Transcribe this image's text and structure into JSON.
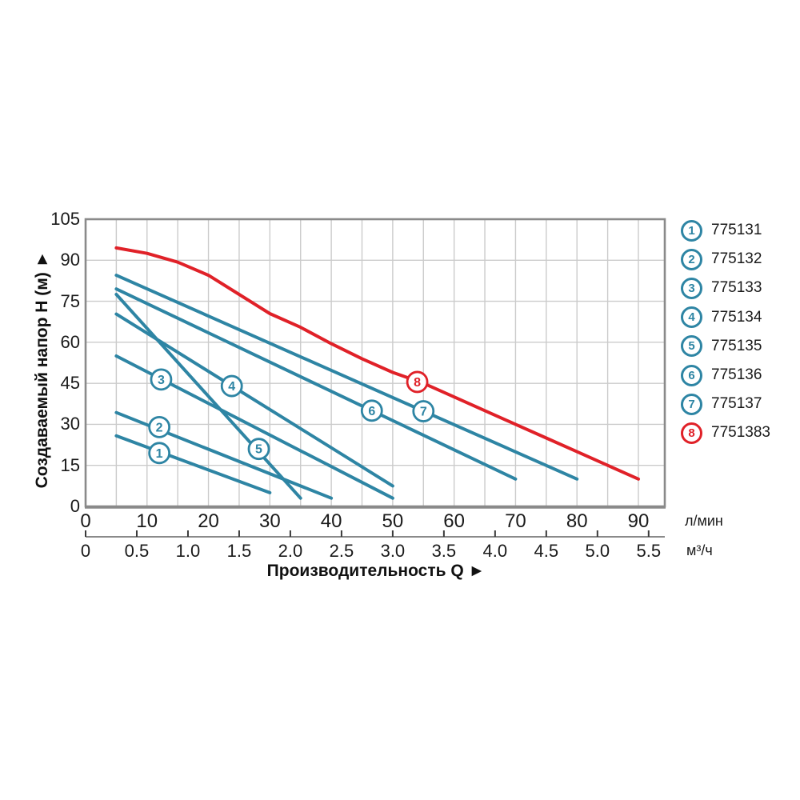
{
  "chart_data": {
    "type": "line",
    "title": "",
    "y_axis": {
      "label": "Создаваемый напор Н (м) ►",
      "ticks": [
        0,
        15,
        30,
        45,
        60,
        75,
        90,
        105
      ],
      "min": 0,
      "max": 105
    },
    "x_axis": {
      "label": "Производительность Q ►",
      "primary": {
        "unit": "л/мин",
        "ticks": [
          0,
          10,
          20,
          30,
          40,
          50,
          60,
          70,
          80,
          90
        ],
        "max": 94.3
      },
      "secondary": {
        "unit": "м³/ч",
        "ticks": [
          "0",
          "0.5",
          "1.0",
          "1.5",
          "2.0",
          "2.5",
          "3.0",
          "3.5",
          "4.0",
          "4.5",
          "5.0",
          "5.5"
        ],
        "lpm_per_unit": 16.667
      }
    },
    "grid": {
      "x_step": 5,
      "y_step": 15,
      "color": "#cbcbcb"
    },
    "series": [
      {
        "num": "1",
        "code": "775131",
        "color": "#2e85a4",
        "points": [
          [
            5,
            25.8
          ],
          [
            30,
            5
          ]
        ],
        "marker": [
          12,
          19.5
        ]
      },
      {
        "num": "2",
        "code": "775132",
        "color": "#2e85a4",
        "points": [
          [
            5,
            34.3
          ],
          [
            40,
            3
          ]
        ],
        "marker": [
          12,
          29
        ]
      },
      {
        "num": "3",
        "code": "775133",
        "color": "#2e85a4",
        "points": [
          [
            5,
            55
          ],
          [
            50,
            3
          ]
        ],
        "marker": [
          12.3,
          46.4
        ]
      },
      {
        "num": "4",
        "code": "775134",
        "color": "#2e85a4",
        "points": [
          [
            5,
            70.3
          ],
          [
            50,
            7.5
          ]
        ],
        "marker": [
          23.8,
          44
        ]
      },
      {
        "num": "5",
        "code": "775135",
        "color": "#2e85a4",
        "points": [
          [
            5,
            77.5
          ],
          [
            35,
            3
          ]
        ],
        "marker": [
          28.2,
          21
        ]
      },
      {
        "num": "6",
        "code": "775136",
        "color": "#2e85a4",
        "points": [
          [
            5,
            79.5
          ],
          [
            70,
            10
          ]
        ],
        "marker": [
          46.6,
          35
        ]
      },
      {
        "num": "7",
        "code": "775137",
        "color": "#2e85a4",
        "points": [
          [
            5,
            84.5
          ],
          [
            80,
            10
          ]
        ],
        "marker": [
          55,
          34.8
        ]
      },
      {
        "num": "8",
        "code": "7751383",
        "color": "#e02128",
        "points": [
          [
            5,
            94.5
          ],
          [
            10,
            92.5
          ],
          [
            15,
            89.3
          ],
          [
            20,
            84.5
          ],
          [
            25,
            77.5
          ],
          [
            30,
            70.5
          ],
          [
            35,
            65.5
          ],
          [
            40,
            59.5
          ],
          [
            45,
            54
          ],
          [
            50,
            49
          ],
          [
            55,
            45
          ],
          [
            60,
            40
          ],
          [
            65,
            35
          ],
          [
            70,
            30
          ],
          [
            75,
            25
          ],
          [
            80,
            20
          ],
          [
            85,
            15
          ],
          [
            90,
            10
          ]
        ],
        "marker": [
          54,
          45.5
        ]
      }
    ]
  }
}
